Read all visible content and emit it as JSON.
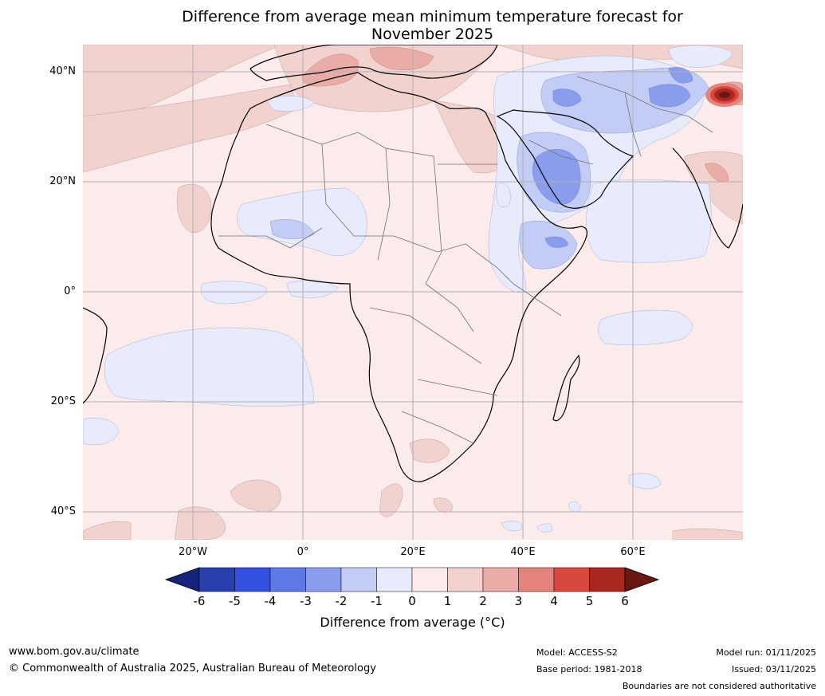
{
  "title": {
    "line1": "Difference from average mean minimum temperature forecast for",
    "line2": "November 2025"
  },
  "map": {
    "lat_labels": [
      "40°N",
      "20°N",
      "0°",
      "20°S",
      "40°S"
    ],
    "lon_labels": [
      "20°W",
      "0°",
      "20°E",
      "40°E",
      "60°E"
    ]
  },
  "colorbar": {
    "title": "Difference from average (°C)",
    "tick_labels": [
      "-6",
      "-5",
      "-4",
      "-3",
      "-2",
      "-1",
      "0",
      "1",
      "2",
      "3",
      "4",
      "5",
      "6"
    ],
    "colors": [
      "#16237a",
      "#2a3fae",
      "#3350e0",
      "#5e78e6",
      "#8a9ded",
      "#c3ccf5",
      "#e8ebfb",
      "#fbeceb",
      "#f2d2cf",
      "#eaaca7",
      "#e3837c",
      "#d9483d",
      "#a9271f",
      "#6a1712"
    ]
  },
  "footer": {
    "website": "www.bom.gov.au/climate",
    "copyright": "© Commonwealth of Australia 2025, Australian Bureau of Meteorology",
    "model": "Model: ACCESS-S2",
    "base_period": "Base period: 1981-2018",
    "model_run": "Model run: 01/11/2025",
    "issued": "Issued: 03/11/2025",
    "disclaimer": "Boundaries are not considered authoritative"
  }
}
